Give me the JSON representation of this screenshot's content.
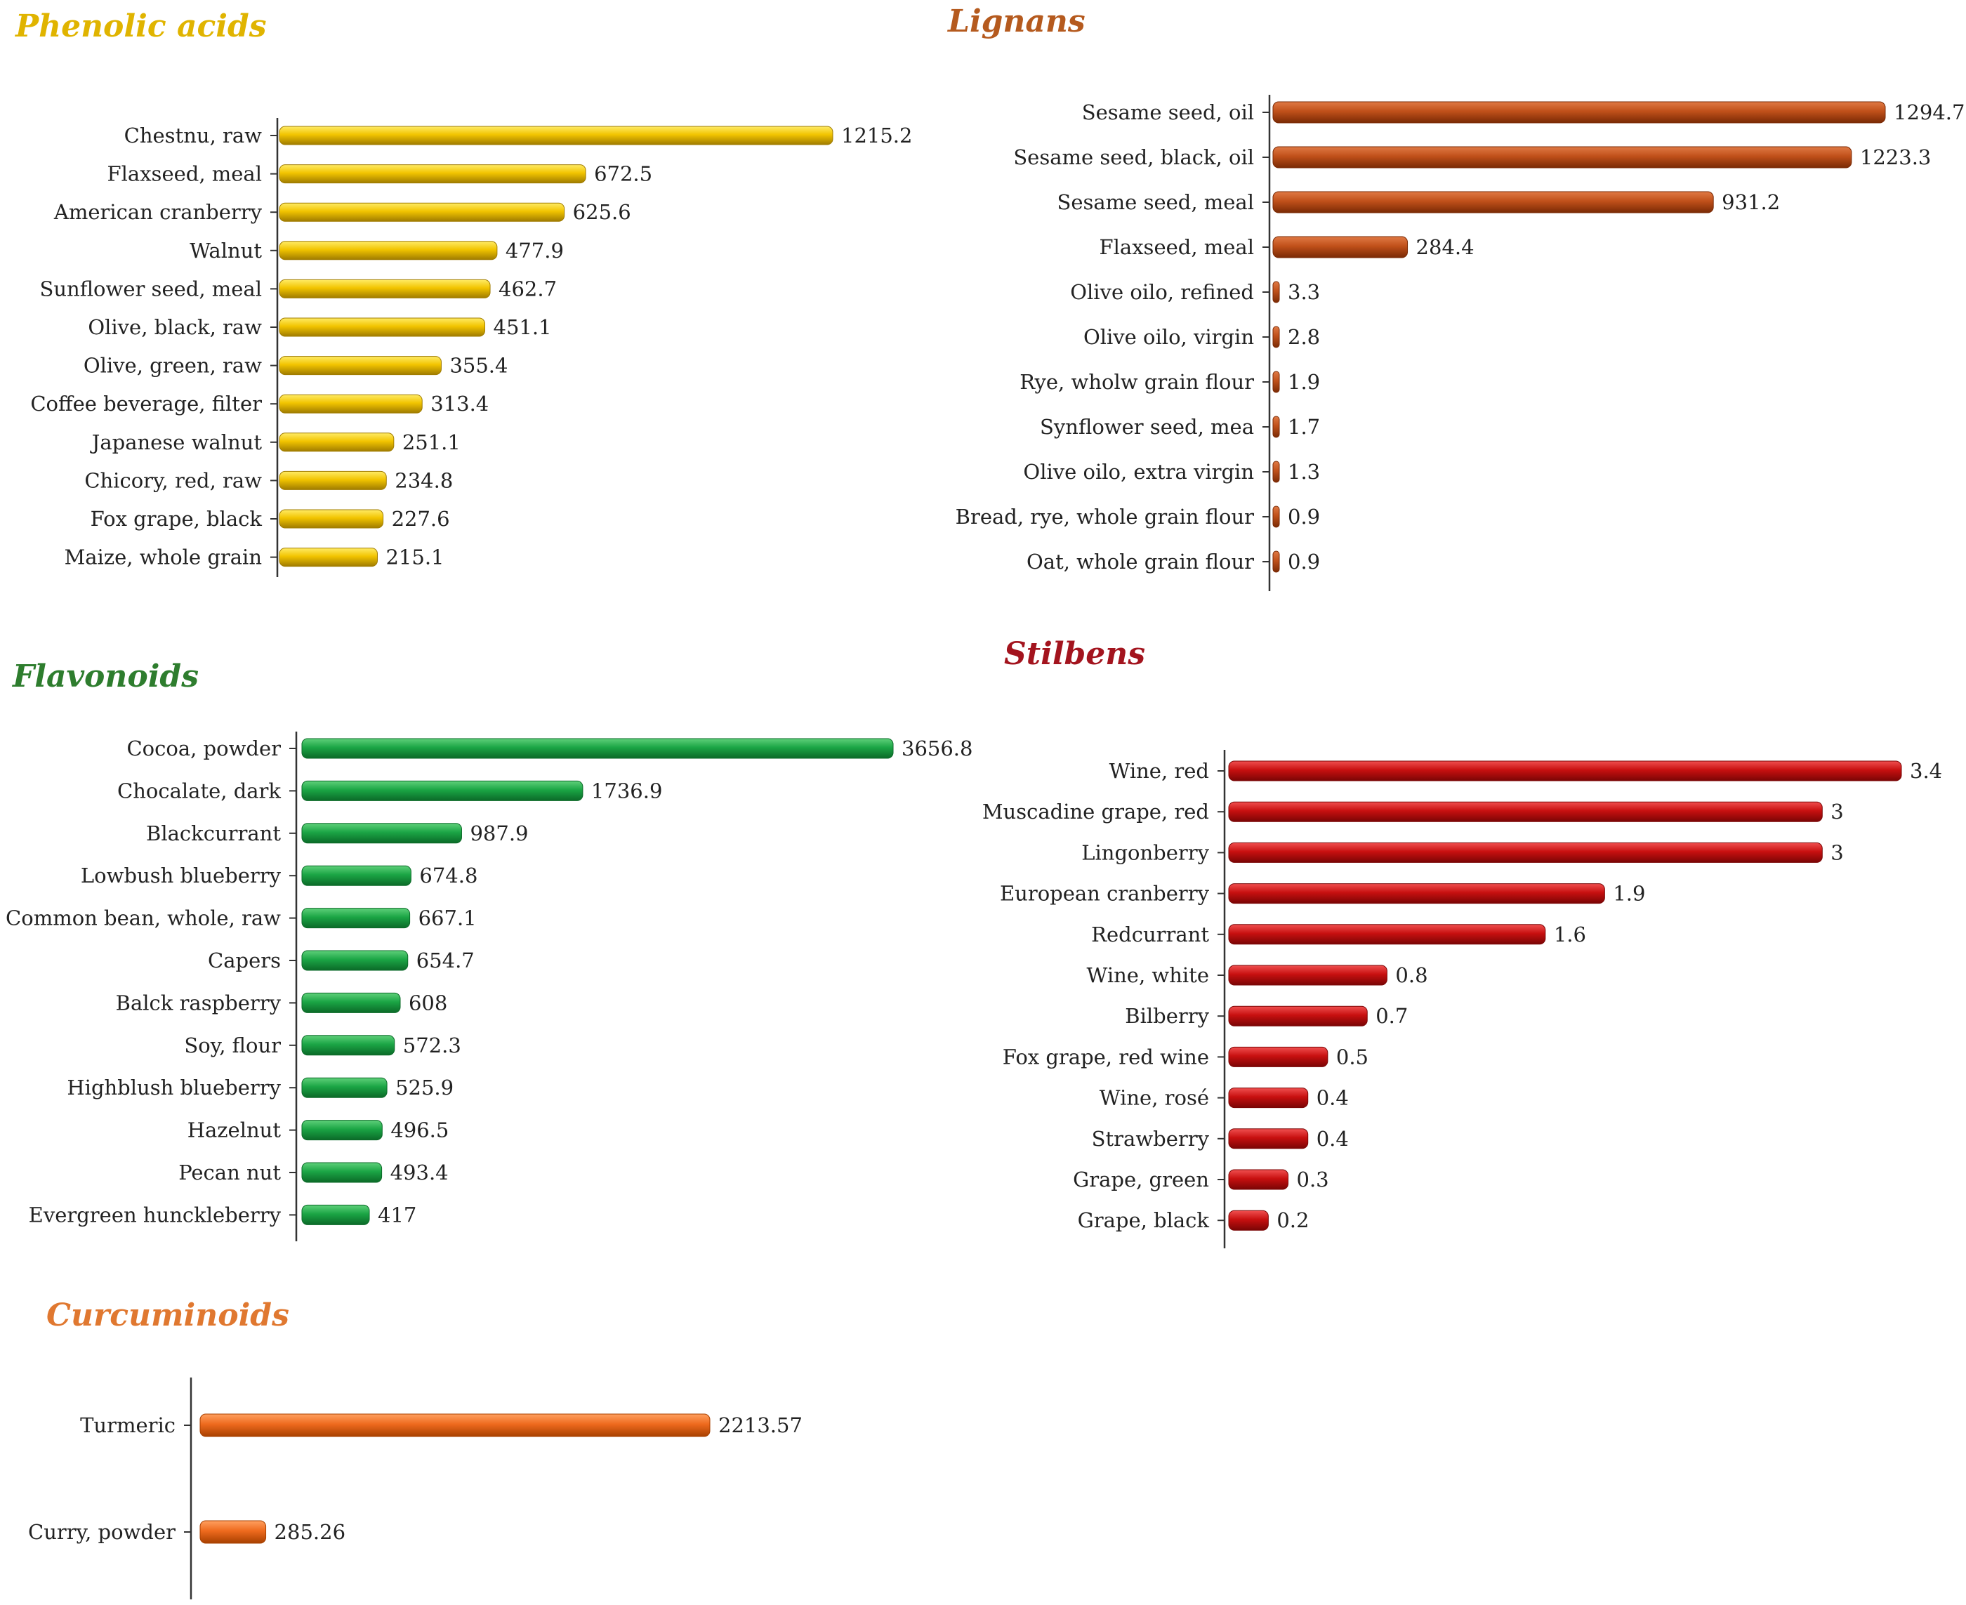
{
  "chart_data": [
    {
      "type": "bar",
      "orientation": "horizontal",
      "title": "Phenolic acids",
      "color": "#E8B800",
      "colors": {
        "title": "#E0B400",
        "bar_light": "#FFEB66",
        "bar_mid": "#F2C400",
        "bar_dark": "#A07C00"
      },
      "categories": [
        "Chestnu, raw",
        "Flaxseed, meal",
        "American cranberry",
        "Walnut",
        "Sunflower seed, meal",
        "Olive, black, raw",
        "Olive, green, raw",
        "Coffee beverage, filter",
        "Japanese walnut",
        "Chicory, red, raw",
        "Fox grape, black",
        "Maize, whole grain"
      ],
      "values": [
        1215.2,
        672.5,
        625.6,
        477.9,
        462.7,
        451.1,
        355.4,
        313.4,
        251.1,
        234.8,
        227.6,
        215.1
      ],
      "value_labels": [
        "1215.2",
        "672.5",
        "625.6",
        "477.9",
        "462.7",
        "451.1",
        "355.4",
        "313.4",
        "251.1",
        "234.8",
        "227.6",
        "215.1"
      ],
      "xlabel": "",
      "ylabel": "",
      "xlim": [
        0,
        1215.2
      ],
      "grid": false,
      "legend": "none"
    },
    {
      "type": "bar",
      "orientation": "horizontal",
      "title": "Lignans",
      "color": "#B5460F",
      "colors": {
        "title": "#B55A1E",
        "bar_light": "#E07A45",
        "bar_mid": "#C0501A",
        "bar_dark": "#7A2A05"
      },
      "categories": [
        "Sesame seed, oil",
        "Sesame seed, black, oil",
        "Sesame seed, meal",
        "Flaxseed, meal",
        "Olive oilo, refined",
        "Olive oilo, virgin",
        "Rye, wholw grain flour",
        "Synflower seed, mea",
        "Olive oilo, extra virgin",
        "Bread, rye, whole grain flour",
        "Oat, whole grain flour"
      ],
      "values": [
        1294.7,
        1223.3,
        931.2,
        284.4,
        3.3,
        2.8,
        1.9,
        1.7,
        1.3,
        0.9,
        0.9
      ],
      "value_labels": [
        "1294.7",
        "1223.3",
        "931.2",
        "284.4",
        "3.3",
        "2.8",
        "1.9",
        "1.7",
        "1.3",
        "0.9",
        "0.9"
      ],
      "xlabel": "",
      "ylabel": "",
      "xlim": [
        0,
        1294.7
      ],
      "grid": false,
      "legend": "none"
    },
    {
      "type": "bar",
      "orientation": "horizontal",
      "title": "Flavonoids",
      "color": "#18A040",
      "colors": {
        "title": "#2E7D2E",
        "bar_light": "#5FD07A",
        "bar_mid": "#1BA545",
        "bar_dark": "#0B6A28"
      },
      "categories": [
        "Cocoa, powder",
        "Chocalate, dark",
        "Blackcurrant",
        "Lowbush blueberry",
        "Common bean, whole, raw",
        "Capers",
        "Balck raspberry",
        "Soy, flour",
        "Highblush blueberry",
        "Hazelnut",
        "Pecan nut",
        "Evergreen hunckleberry"
      ],
      "values": [
        3656.8,
        1736.9,
        987.9,
        674.8,
        667.1,
        654.7,
        608,
        572.3,
        525.9,
        496.5,
        493.4,
        417
      ],
      "value_labels": [
        "3656.8",
        "1736.9",
        "987.9",
        "674.8",
        "667.1",
        "654.7",
        "608",
        "572.3",
        "525.9",
        "496.5",
        "493.4",
        "417"
      ],
      "xlabel": "",
      "ylabel": "",
      "xlim": [
        0,
        3656.8
      ],
      "grid": false,
      "legend": "none"
    },
    {
      "type": "bar",
      "orientation": "horizontal",
      "title": "Stilbens",
      "color": "#C40E0E",
      "colors": {
        "title": "#A3141E",
        "bar_light": "#F05050",
        "bar_mid": "#C81010",
        "bar_dark": "#7A0505"
      },
      "categories": [
        "Wine, red",
        "Muscadine grape, red",
        "Lingonberry",
        "European cranberry",
        "Redcurrant",
        "Wine, white",
        "Bilberry",
        "Fox grape, red wine",
        "Wine, rosé",
        "Strawberry",
        "Grape, green",
        "Grape, black"
      ],
      "values": [
        3.4,
        3,
        3,
        1.9,
        1.6,
        0.8,
        0.7,
        0.5,
        0.4,
        0.4,
        0.3,
        0.2
      ],
      "value_labels": [
        "3.4",
        "3",
        "3",
        "1.9",
        "1.6",
        "0.8",
        "0.7",
        "0.5",
        "0.4",
        "0.4",
        "0.3",
        "0.2"
      ],
      "xlabel": "",
      "ylabel": "",
      "xlim": [
        0,
        3.4
      ],
      "grid": false,
      "legend": "none"
    },
    {
      "type": "bar",
      "orientation": "horizontal",
      "title": "Curcuminoids",
      "color": "#EE6A1E",
      "colors": {
        "title": "#E07830",
        "bar_light": "#FFA060",
        "bar_mid": "#EE6A1E",
        "bar_dark": "#A84000"
      },
      "categories": [
        "Turmeric",
        "Curry, powder"
      ],
      "values": [
        2213.57,
        285.26
      ],
      "value_labels": [
        "2213.57",
        "285.26"
      ],
      "xlabel": "",
      "ylabel": "",
      "xlim": [
        0,
        2213.57
      ],
      "grid": false,
      "legend": "none"
    }
  ]
}
